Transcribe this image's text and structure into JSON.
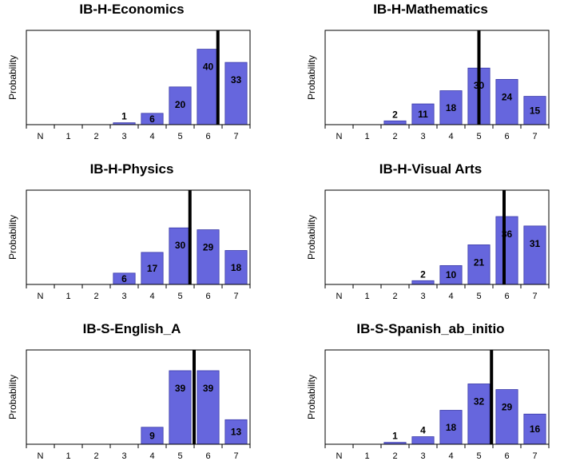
{
  "chart_data": [
    {
      "type": "bar",
      "title": "IB-H-Economics",
      "ylabel": "Probability",
      "categories": [
        "N",
        "1",
        "2",
        "3",
        "4",
        "5",
        "6",
        "7"
      ],
      "values": [
        0,
        0,
        0,
        1,
        6,
        20,
        40,
        33
      ],
      "labels": [
        "",
        "",
        "",
        "1",
        "6",
        "20",
        "40",
        "33"
      ],
      "ylim": [
        0,
        50
      ],
      "marker": 6.35
    },
    {
      "type": "bar",
      "title": "IB-H-Mathematics",
      "ylabel": "Probability",
      "categories": [
        "N",
        "1",
        "2",
        "3",
        "4",
        "5",
        "6",
        "7"
      ],
      "values": [
        0,
        0,
        2,
        11,
        18,
        30,
        24,
        15
      ],
      "labels": [
        "",
        "",
        "2",
        "11",
        "18",
        "30",
        "24",
        "15"
      ],
      "ylim": [
        0,
        50
      ],
      "marker": 5.0
    },
    {
      "type": "bar",
      "title": "IB-H-Physics",
      "ylabel": "Probability",
      "categories": [
        "N",
        "1",
        "2",
        "3",
        "4",
        "5",
        "6",
        "7"
      ],
      "values": [
        0,
        0,
        0,
        6,
        17,
        30,
        29,
        18
      ],
      "labels": [
        "",
        "",
        "",
        "6",
        "17",
        "30",
        "29",
        "18"
      ],
      "ylim": [
        0,
        50
      ],
      "marker": 5.35
    },
    {
      "type": "bar",
      "title": "IB-H-Visual Arts",
      "ylabel": "Probability",
      "categories": [
        "N",
        "1",
        "2",
        "3",
        "4",
        "5",
        "6",
        "7"
      ],
      "values": [
        0,
        0,
        0,
        2,
        10,
        21,
        36,
        31
      ],
      "labels": [
        "",
        "",
        "",
        "2",
        "10",
        "21",
        "36",
        "31"
      ],
      "ylim": [
        0,
        50
      ],
      "marker": 5.9
    },
    {
      "type": "bar",
      "title": "IB-S-English_A",
      "ylabel": "Probability",
      "categories": [
        "N",
        "1",
        "2",
        "3",
        "4",
        "5",
        "6",
        "7"
      ],
      "values": [
        0,
        0,
        0,
        0,
        9,
        39,
        39,
        13
      ],
      "labels": [
        "",
        "",
        "",
        "",
        "9",
        "39",
        "39",
        "13"
      ],
      "ylim": [
        0,
        50
      ],
      "marker": 5.5
    },
    {
      "type": "bar",
      "title": "IB-S-Spanish_ab_initio",
      "ylabel": "Probability",
      "categories": [
        "N",
        "1",
        "2",
        "3",
        "4",
        "5",
        "6",
        "7"
      ],
      "values": [
        0,
        0,
        1,
        4,
        18,
        32,
        29,
        16
      ],
      "labels": [
        "",
        "",
        "1",
        "4",
        "18",
        "32",
        "29",
        "16"
      ],
      "ylim": [
        0,
        50
      ],
      "marker": 5.45
    }
  ],
  "colors": {
    "bar_fill": "#6666dd",
    "bar_stroke": "#3a3aa8",
    "marker": "#000000",
    "axis": "#000000"
  }
}
